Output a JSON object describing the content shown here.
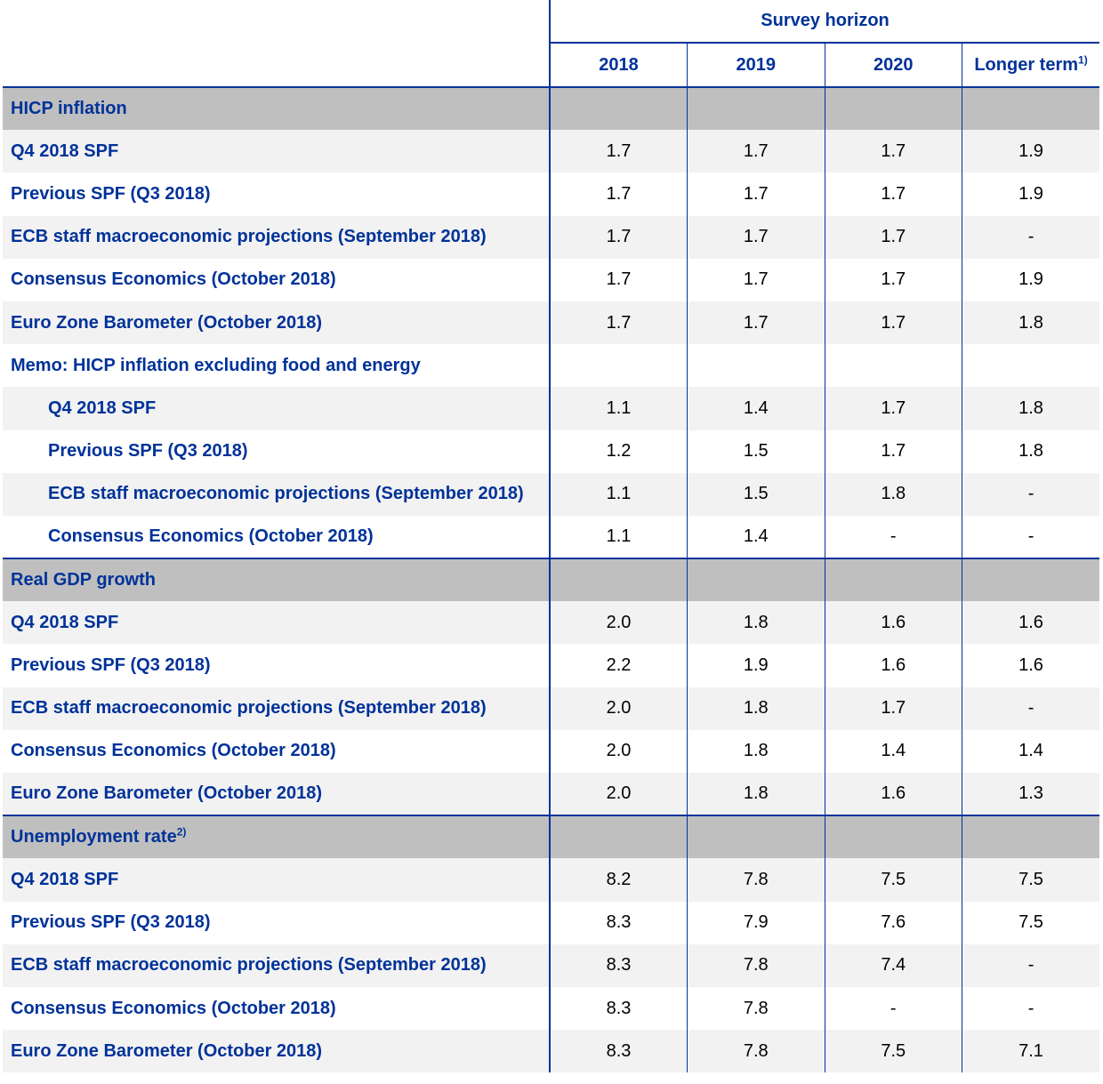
{
  "header": {
    "survey_horizon": "Survey horizon",
    "columns": [
      "2018",
      "2019",
      "2020",
      "Longer term"
    ],
    "longer_term_note": "1)"
  },
  "sections": [
    {
      "title": "HICP inflation",
      "note": "",
      "rows": [
        {
          "label": "Q4 2018 SPF",
          "values": [
            "1.7",
            "1.7",
            "1.7",
            "1.9"
          ]
        },
        {
          "label": "Previous SPF (Q3 2018)",
          "values": [
            "1.7",
            "1.7",
            "1.7",
            "1.9"
          ]
        },
        {
          "label": "ECB staff macroeconomic projections (September 2018)",
          "values": [
            "1.7",
            "1.7",
            "1.7",
            "-"
          ]
        },
        {
          "label": "Consensus Economics (October 2018)",
          "values": [
            "1.7",
            "1.7",
            "1.7",
            "1.9"
          ]
        },
        {
          "label": "Euro Zone Barometer (October 2018)",
          "values": [
            "1.7",
            "1.7",
            "1.7",
            "1.8"
          ]
        },
        {
          "label": "Memo: HICP inflation excluding food and energy",
          "values": [
            "",
            "",
            "",
            ""
          ]
        },
        {
          "label": "Q4 2018 SPF",
          "values": [
            "1.1",
            "1.4",
            "1.7",
            "1.8"
          ],
          "indent": true
        },
        {
          "label": "Previous SPF (Q3 2018)",
          "values": [
            "1.2",
            "1.5",
            "1.7",
            "1.8"
          ],
          "indent": true
        },
        {
          "label": "ECB staff macroeconomic projections (September 2018)",
          "values": [
            "1.1",
            "1.5",
            "1.8",
            "-"
          ],
          "indent": true
        },
        {
          "label": "Consensus Economics (October 2018)",
          "values": [
            "1.1",
            "1.4",
            "-",
            "-"
          ],
          "indent": true
        }
      ]
    },
    {
      "title": "Real GDP growth",
      "note": "",
      "rows": [
        {
          "label": "Q4 2018 SPF",
          "values": [
            "2.0",
            "1.8",
            "1.6",
            "1.6"
          ]
        },
        {
          "label": "Previous SPF (Q3 2018)",
          "values": [
            "2.2",
            "1.9",
            "1.6",
            "1.6"
          ]
        },
        {
          "label": "ECB staff macroeconomic projections (September 2018)",
          "values": [
            "2.0",
            "1.8",
            "1.7",
            "-"
          ]
        },
        {
          "label": "Consensus Economics (October 2018)",
          "values": [
            "2.0",
            "1.8",
            "1.4",
            "1.4"
          ]
        },
        {
          "label": "Euro Zone Barometer (October 2018)",
          "values": [
            "2.0",
            "1.8",
            "1.6",
            "1.3"
          ]
        }
      ]
    },
    {
      "title": "Unemployment rate",
      "note": "2)",
      "rows": [
        {
          "label": "Q4 2018 SPF",
          "values": [
            "8.2",
            "7.8",
            "7.5",
            "7.5"
          ]
        },
        {
          "label": "Previous SPF (Q3 2018)",
          "values": [
            "8.3",
            "7.9",
            "7.6",
            "7.5"
          ]
        },
        {
          "label": "ECB staff macroeconomic projections (September 2018)",
          "values": [
            "8.3",
            "7.8",
            "7.4",
            "-"
          ]
        },
        {
          "label": "Consensus Economics (October 2018)",
          "values": [
            "8.3",
            "7.8",
            "-",
            "-"
          ]
        },
        {
          "label": "Euro Zone Barometer (October 2018)",
          "values": [
            "8.3",
            "7.8",
            "7.5",
            "7.1"
          ]
        }
      ]
    }
  ]
}
